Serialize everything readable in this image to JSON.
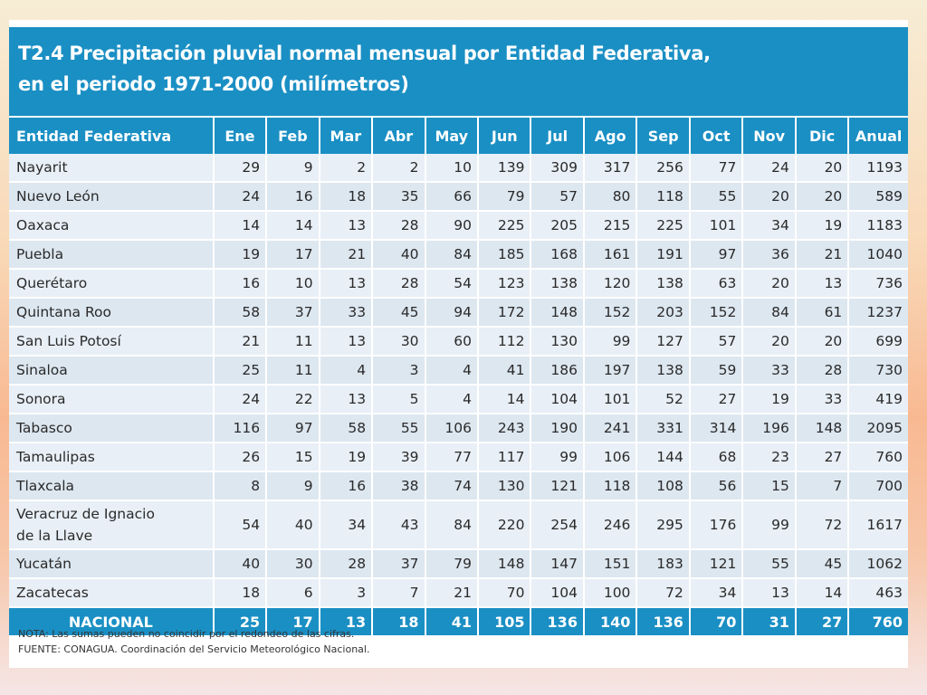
{
  "table": {
    "code": "T2.4",
    "title_line1": "Precipitación pluvial normal mensual por Entidad Federativa,",
    "title_line2": "en el periodo 1971-2000 (milímetros)",
    "headers": [
      "Entidad Federativa",
      "Ene",
      "Feb",
      "Mar",
      "Abr",
      "May",
      "Jun",
      "Jul",
      "Ago",
      "Sep",
      "Oct",
      "Nov",
      "Dic",
      "Anual"
    ],
    "rows": [
      {
        "name": "Nayarit",
        "values": [
          "29",
          "9",
          "2",
          "2",
          "10",
          "139",
          "309",
          "317",
          "256",
          "77",
          "24",
          "20",
          "1193"
        ]
      },
      {
        "name": "Nuevo León",
        "values": [
          "24",
          "16",
          "18",
          "35",
          "66",
          "79",
          "57",
          "80",
          "118",
          "55",
          "20",
          "20",
          "589"
        ]
      },
      {
        "name": "Oaxaca",
        "values": [
          "14",
          "14",
          "13",
          "28",
          "90",
          "225",
          "205",
          "215",
          "225",
          "101",
          "34",
          "19",
          "1183"
        ]
      },
      {
        "name": "Puebla",
        "values": [
          "19",
          "17",
          "21",
          "40",
          "84",
          "185",
          "168",
          "161",
          "191",
          "97",
          "36",
          "21",
          "1040"
        ]
      },
      {
        "name": "Querétaro",
        "values": [
          "16",
          "10",
          "13",
          "28",
          "54",
          "123",
          "138",
          "120",
          "138",
          "63",
          "20",
          "13",
          "736"
        ]
      },
      {
        "name": "Quintana Roo",
        "values": [
          "58",
          "37",
          "33",
          "45",
          "94",
          "172",
          "148",
          "152",
          "203",
          "152",
          "84",
          "61",
          "1237"
        ]
      },
      {
        "name": "San Luis Potosí",
        "values": [
          "21",
          "11",
          "13",
          "30",
          "60",
          "112",
          "130",
          "99",
          "127",
          "57",
          "20",
          "20",
          "699"
        ]
      },
      {
        "name": "Sinaloa",
        "values": [
          "25",
          "11",
          "4",
          "3",
          "4",
          "41",
          "186",
          "197",
          "138",
          "59",
          "33",
          "28",
          "730"
        ]
      },
      {
        "name": "Sonora",
        "values": [
          "24",
          "22",
          "13",
          "5",
          "4",
          "14",
          "104",
          "101",
          "52",
          "27",
          "19",
          "33",
          "419"
        ]
      },
      {
        "name": "Tabasco",
        "values": [
          "116",
          "97",
          "58",
          "55",
          "106",
          "243",
          "190",
          "241",
          "331",
          "314",
          "196",
          "148",
          "2095"
        ]
      },
      {
        "name": "Tamaulipas",
        "values": [
          "26",
          "15",
          "19",
          "39",
          "77",
          "117",
          "99",
          "106",
          "144",
          "68",
          "23",
          "27",
          "760"
        ]
      },
      {
        "name": "Tlaxcala",
        "values": [
          "8",
          "9",
          "16",
          "38",
          "74",
          "130",
          "121",
          "118",
          "108",
          "56",
          "15",
          "7",
          "700"
        ]
      },
      {
        "name": "Veracruz de Ignacio\nde la Llave",
        "values": [
          "54",
          "40",
          "34",
          "43",
          "84",
          "220",
          "254",
          "246",
          "295",
          "176",
          "99",
          "72",
          "1617"
        ]
      },
      {
        "name": "Yucatán",
        "values": [
          "40",
          "30",
          "28",
          "37",
          "79",
          "148",
          "147",
          "151",
          "183",
          "121",
          "55",
          "45",
          "1062"
        ]
      },
      {
        "name": "Zacatecas",
        "values": [
          "18",
          "6",
          "3",
          "7",
          "21",
          "70",
          "104",
          "100",
          "72",
          "34",
          "13",
          "14",
          "463"
        ]
      }
    ],
    "total": {
      "name": "NACIONAL",
      "values": [
        "25",
        "17",
        "13",
        "18",
        "41",
        "105",
        "136",
        "140",
        "136",
        "70",
        "31",
        "27",
        "760"
      ]
    }
  },
  "notes": {
    "nota": "NOTA: Las sumas pueden no coincidir por el redondeo de las cifras.",
    "fuente": "FUENTE: CONAGUA. Coordinación del Servicio Meteorológico Nacional."
  }
}
